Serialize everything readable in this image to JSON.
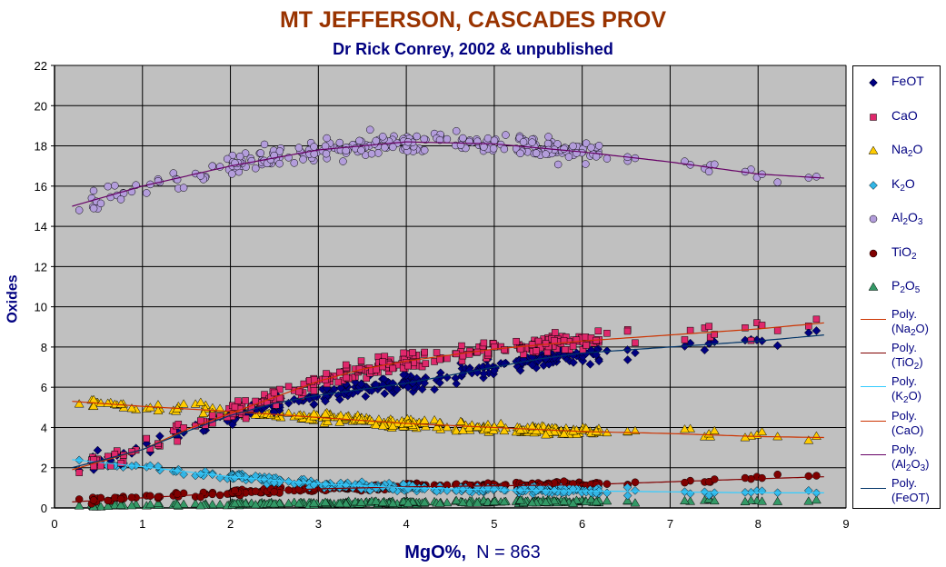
{
  "title": "MT JEFFERSON, CASCADES PROV",
  "subtitle": "Dr Rick Conrey, 2002 & unpublished",
  "chart_data": {
    "type": "scatter",
    "title": "MT JEFFERSON, CASCADES PROV",
    "subtitle": "Dr Rick Conrey, 2002 & unpublished",
    "xlabel_bold": "MgO%,",
    "xlabel_rest": "N = 863",
    "ylabel": "Oxides",
    "xlim": [
      0,
      9
    ],
    "ylim": [
      0,
      22
    ],
    "x_ticks": [
      "0",
      "1",
      "2",
      "3",
      "4",
      "5",
      "6",
      "7",
      "8",
      "9"
    ],
    "y_ticks": [
      "0",
      "2",
      "4",
      "6",
      "8",
      "10",
      "12",
      "14",
      "16",
      "18",
      "20",
      "22"
    ],
    "grid": true,
    "legend_position": "right",
    "series": [
      {
        "name": "FeOT",
        "label_parts": [
          "FeOT"
        ],
        "marker": "diamond",
        "color": "#000080",
        "trend": [
          [
            0.2,
            2.0
          ],
          [
            1.0,
            2.9
          ],
          [
            1.5,
            3.8
          ],
          [
            2.0,
            4.6
          ],
          [
            2.5,
            5.2
          ],
          [
            3.0,
            5.6
          ],
          [
            3.5,
            5.9
          ],
          [
            4.0,
            6.2
          ],
          [
            4.5,
            6.6
          ],
          [
            5.0,
            7.0
          ],
          [
            5.5,
            7.4
          ],
          [
            6.0,
            7.7
          ],
          [
            7.0,
            8.0
          ],
          [
            8.0,
            8.3
          ],
          [
            8.75,
            8.6
          ]
        ],
        "spread": 0.45
      },
      {
        "name": "CaO",
        "label_parts": [
          "CaO"
        ],
        "marker": "square",
        "color": "#e0286c",
        "trend": [
          [
            0.2,
            1.9
          ],
          [
            1.0,
            2.9
          ],
          [
            1.5,
            3.9
          ],
          [
            2.0,
            4.7
          ],
          [
            2.5,
            5.5
          ],
          [
            3.0,
            6.3
          ],
          [
            3.5,
            6.9
          ],
          [
            4.0,
            7.3
          ],
          [
            4.5,
            7.6
          ],
          [
            5.0,
            7.9
          ],
          [
            5.5,
            8.1
          ],
          [
            6.0,
            8.3
          ],
          [
            7.0,
            8.6
          ],
          [
            8.0,
            8.9
          ],
          [
            8.75,
            9.2
          ]
        ],
        "spread": 0.45
      },
      {
        "name": "Na2O",
        "label_parts": [
          "Na",
          "2",
          "O"
        ],
        "marker": "triangle",
        "color": "#ffcc00",
        "trend": [
          [
            0.2,
            5.3
          ],
          [
            1.0,
            5.05
          ],
          [
            2.0,
            4.8
          ],
          [
            3.0,
            4.5
          ],
          [
            4.0,
            4.2
          ],
          [
            5.0,
            4.0
          ],
          [
            6.0,
            3.8
          ],
          [
            7.0,
            3.7
          ],
          [
            8.0,
            3.55
          ],
          [
            8.75,
            3.5
          ]
        ],
        "spread": 0.28
      },
      {
        "name": "K2O",
        "label_parts": [
          "K",
          "2",
          "O"
        ],
        "marker": "diamond",
        "color": "#33b5e5",
        "trend": [
          [
            0.2,
            2.4
          ],
          [
            1.0,
            2.05
          ],
          [
            2.0,
            1.55
          ],
          [
            3.0,
            1.2
          ],
          [
            4.0,
            1.0
          ],
          [
            5.0,
            0.9
          ],
          [
            6.0,
            0.85
          ],
          [
            7.0,
            0.8
          ],
          [
            8.0,
            0.75
          ],
          [
            8.75,
            0.75
          ]
        ],
        "spread": 0.18
      },
      {
        "name": "Al2O3",
        "label_parts": [
          "Al",
          "2",
          "O",
          "3"
        ],
        "marker": "circle",
        "color": "#b39ddb",
        "trend": [
          [
            0.2,
            15.0
          ],
          [
            1.0,
            16.0
          ],
          [
            2.0,
            17.0
          ],
          [
            3.0,
            17.8
          ],
          [
            4.0,
            18.2
          ],
          [
            5.0,
            18.1
          ],
          [
            6.0,
            17.7
          ],
          [
            7.0,
            17.2
          ],
          [
            8.0,
            16.6
          ],
          [
            8.75,
            16.4
          ]
        ],
        "spread": 0.55
      },
      {
        "name": "TiO2",
        "label_parts": [
          "TiO",
          "2"
        ],
        "marker": "circle",
        "color": "#800000",
        "trend": [
          [
            0.2,
            0.3
          ],
          [
            1.0,
            0.5
          ],
          [
            2.0,
            0.75
          ],
          [
            3.0,
            0.95
          ],
          [
            4.0,
            1.05
          ],
          [
            5.0,
            1.1
          ],
          [
            6.0,
            1.15
          ],
          [
            7.0,
            1.3
          ],
          [
            8.0,
            1.45
          ],
          [
            8.75,
            1.55
          ]
        ],
        "spread": 0.15
      },
      {
        "name": "P2O5",
        "label_parts": [
          "P",
          "2",
          "O",
          "5"
        ],
        "marker": "triangle",
        "color": "#339966",
        "trend": [
          [
            0.2,
            0.08
          ],
          [
            1.0,
            0.12
          ],
          [
            2.0,
            0.18
          ],
          [
            3.0,
            0.22
          ],
          [
            4.0,
            0.27
          ],
          [
            5.0,
            0.3
          ],
          [
            6.0,
            0.32
          ],
          [
            7.0,
            0.35
          ],
          [
            8.0,
            0.38
          ],
          [
            8.75,
            0.4
          ]
        ],
        "spread": 0.08
      }
    ],
    "trendlines": [
      {
        "label_parts": [
          "Poly.",
          "(Na",
          "2",
          "O)"
        ],
        "of": "Na2O",
        "color": "#cc3300"
      },
      {
        "label_parts": [
          "Poly.",
          "(TiO",
          "2",
          ")"
        ],
        "of": "TiO2",
        "color": "#800000"
      },
      {
        "label_parts": [
          "Poly.",
          "(K",
          "2",
          "O)"
        ],
        "of": "K2O",
        "color": "#33ccff"
      },
      {
        "label_parts": [
          "Poly.",
          "(CaO)"
        ],
        "of": "CaO",
        "color": "#cc3300"
      },
      {
        "label_parts": [
          "Poly.",
          "(Al",
          "2",
          "O",
          "3",
          ")"
        ],
        "of": "Al2O3",
        "color": "#660066"
      },
      {
        "label_parts": [
          "Poly.",
          "(FeOT)"
        ],
        "of": "FeOT",
        "color": "#003366"
      }
    ]
  }
}
